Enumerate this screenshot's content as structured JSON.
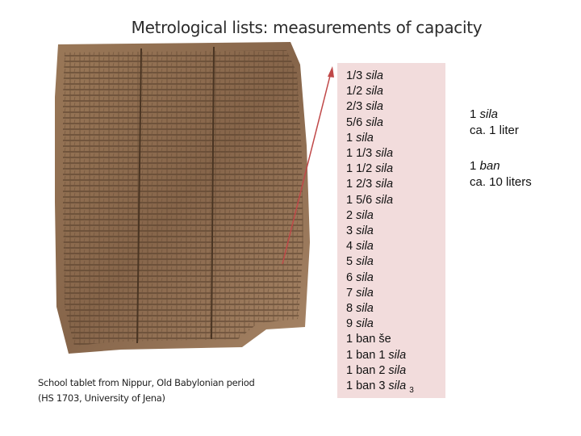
{
  "title": "Metrological lists: measurements of capacity",
  "caption": [
    "School tablet from Nippur, Old Babylonian period",
    "(HS 1703, University of Jena)"
  ],
  "list": [
    {
      "number": "1/3",
      "unit": "sila"
    },
    {
      "number": "1/2",
      "unit": "sila"
    },
    {
      "number": "2/3",
      "unit": "sila"
    },
    {
      "number": "5/6",
      "unit": "sila"
    },
    {
      "number": "1",
      "unit": "sila"
    },
    {
      "number": "1 1/3",
      "unit": "sila"
    },
    {
      "number": "1 1/2",
      "unit": "sila"
    },
    {
      "number": "1 2/3",
      "unit": "sila"
    },
    {
      "number": "1 5/6",
      "unit": "sila"
    },
    {
      "number": "2",
      "unit": "sila"
    },
    {
      "number": "3",
      "unit": "sila"
    },
    {
      "number": "4",
      "unit": "sila"
    },
    {
      "number": "5",
      "unit": "sila"
    },
    {
      "number": "6",
      "unit": "sila"
    },
    {
      "number": "7",
      "unit": "sila"
    },
    {
      "number": "8",
      "unit": "sila"
    },
    {
      "number": "9",
      "unit": "sila"
    },
    {
      "number": "1 ban še",
      "unit": ""
    },
    {
      "number": "1 ban 1",
      "unit": "sila"
    },
    {
      "number": "1 ban 2",
      "unit": "sila"
    },
    {
      "number": "1 ban 3",
      "unit": "sila"
    }
  ],
  "slide_number": "3",
  "notes": [
    {
      "number": "1",
      "unit": "sila",
      "equivalent": "ca. 1 liter"
    },
    {
      "number": "1",
      "unit": "ban",
      "equivalent": "ca. 10 liters"
    }
  ]
}
